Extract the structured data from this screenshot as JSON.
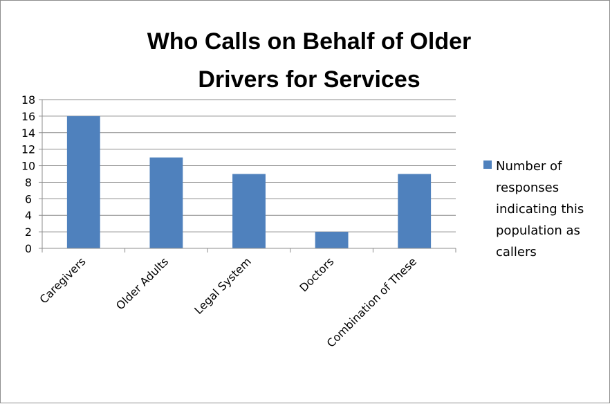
{
  "chart_data": {
    "type": "bar",
    "title_lines": [
      "Who Calls on Behalf of Older",
      "Drivers for Services"
    ],
    "categories": [
      "Caregivers",
      "Older Adults",
      "Legal System",
      "Doctors",
      "Combination of These"
    ],
    "series": [
      {
        "name": "Number of responses indicating this population as callers",
        "legend_lines": [
          "Number of",
          "responses",
          "indicating this",
          "population as",
          "callers"
        ],
        "values": [
          16,
          11,
          9,
          2,
          9
        ],
        "color": "#4f81bd"
      }
    ],
    "ylim": [
      0,
      18
    ],
    "yticks": [
      "0",
      "2",
      "4",
      "6",
      "8",
      "10",
      "12",
      "14",
      "16",
      "18"
    ],
    "grid": true,
    "legend": "right",
    "xlabel": "",
    "ylabel": ""
  }
}
